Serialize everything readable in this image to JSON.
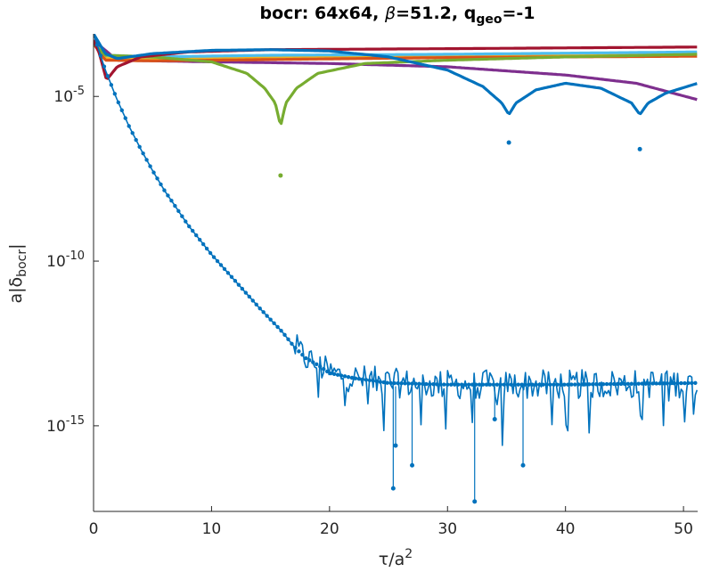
{
  "chart_data": {
    "type": "line",
    "title": {
      "text": "bocr: 64x64, ",
      "beta": "β",
      "beta_eq": "=51.2, q",
      "geo_sub": "geo",
      "tail": "=-1"
    },
    "xlabel": {
      "main": "τ/a",
      "sup": "2"
    },
    "ylabel": {
      "main": "a|δ",
      "sub": "bocr",
      "close": "|"
    },
    "xlim": [
      0,
      51.2
    ],
    "ylim_log10": [
      -17.6,
      -3.1
    ],
    "y_scale": "log",
    "grid": false,
    "legend": "none",
    "x_ticks": [
      {
        "value": 0,
        "label": "0"
      },
      {
        "value": 10,
        "label": "10"
      },
      {
        "value": 20,
        "label": "20"
      },
      {
        "value": 30,
        "label": "30"
      },
      {
        "value": 40,
        "label": "40"
      },
      {
        "value": 50,
        "label": "50"
      }
    ],
    "y_ticks": [
      {
        "value": -5,
        "label": "10",
        "exp": "-5"
      },
      {
        "value": -10,
        "label": "10",
        "exp": "-10"
      },
      {
        "value": -15,
        "label": "10",
        "exp": "-15"
      }
    ],
    "series": [
      {
        "color": "#7e2f8e",
        "points": [
          [
            0,
            -3.3
          ],
          [
            2,
            -3.9
          ],
          [
            10,
            -3.95
          ],
          [
            20,
            -4.0
          ],
          [
            30,
            -4.1
          ],
          [
            40,
            -4.35
          ],
          [
            46,
            -4.6
          ],
          [
            51.2,
            -5.1
          ]
        ]
      },
      {
        "color": "#edb120",
        "points": [
          [
            0,
            -3.4
          ],
          [
            1,
            -3.85
          ],
          [
            5,
            -3.85
          ],
          [
            15,
            -3.8
          ],
          [
            30,
            -3.78
          ],
          [
            45,
            -3.75
          ],
          [
            51.2,
            -3.72
          ]
        ]
      },
      {
        "color": "#d95319",
        "points": [
          [
            0,
            -3.4
          ],
          [
            1,
            -3.9
          ],
          [
            5,
            -3.92
          ],
          [
            15,
            -3.88
          ],
          [
            30,
            -3.82
          ],
          [
            51.2,
            -3.78
          ]
        ]
      },
      {
        "color": "#4dbeee",
        "points": [
          [
            0,
            -3.4
          ],
          [
            1,
            -3.75
          ],
          [
            5,
            -3.8
          ],
          [
            15,
            -3.75
          ],
          [
            30,
            -3.72
          ],
          [
            51.2,
            -3.65
          ]
        ]
      },
      {
        "color": "#77ac30",
        "points": [
          [
            0,
            -3.4
          ],
          [
            1,
            -3.75
          ],
          [
            5,
            -3.8
          ],
          [
            10,
            -3.95
          ],
          [
            13,
            -4.3
          ],
          [
            14.5,
            -4.75
          ],
          [
            15.4,
            -5.2
          ],
          [
            15.85,
            -5.9
          ],
          [
            16.3,
            -5.2
          ],
          [
            17.2,
            -4.75
          ],
          [
            19,
            -4.3
          ],
          [
            23,
            -4.0
          ],
          [
            30,
            -3.9
          ],
          [
            40,
            -3.8
          ],
          [
            51.2,
            -3.72
          ]
        ]
      },
      {
        "color": "#a2142f",
        "points": [
          [
            0,
            -3.3
          ],
          [
            0.5,
            -3.7
          ],
          [
            1.1,
            -4.5
          ],
          [
            2,
            -4.1
          ],
          [
            4,
            -3.8
          ],
          [
            8,
            -3.65
          ],
          [
            15,
            -3.58
          ],
          [
            30,
            -3.55
          ],
          [
            51.2,
            -3.5
          ]
        ]
      },
      {
        "color": "#0072bd",
        "points": [
          [
            0,
            -3.1
          ],
          [
            1,
            -3.7
          ],
          [
            2,
            -3.85
          ],
          [
            5,
            -3.7
          ],
          [
            10,
            -3.6
          ],
          [
            15,
            -3.58
          ],
          [
            20,
            -3.62
          ],
          [
            25,
            -3.8
          ],
          [
            30,
            -4.2
          ],
          [
            33,
            -4.7
          ],
          [
            34.6,
            -5.2
          ],
          [
            35.2,
            -5.55
          ],
          [
            35.8,
            -5.2
          ],
          [
            37.5,
            -4.8
          ],
          [
            40,
            -4.6
          ],
          [
            43,
            -4.75
          ],
          [
            45.6,
            -5.2
          ],
          [
            46.3,
            -5.55
          ],
          [
            47,
            -5.2
          ],
          [
            48.5,
            -4.9
          ],
          [
            51.2,
            -4.6
          ]
        ]
      },
      {
        "color": "#0072bd",
        "points": [
          [
            0,
            -3.1
          ],
          [
            1,
            -4.2
          ],
          [
            2,
            -5.1
          ],
          [
            3,
            -5.9
          ],
          [
            4,
            -6.6
          ],
          [
            5,
            -7.25
          ],
          [
            6,
            -7.85
          ],
          [
            8,
            -8.9
          ],
          [
            10,
            -9.8
          ],
          [
            12,
            -10.6
          ],
          [
            14,
            -11.4
          ],
          [
            16,
            -12.15
          ],
          [
            17,
            -12.6
          ],
          [
            18,
            -12.95
          ],
          [
            19,
            -13.15
          ],
          [
            20,
            -13.4
          ],
          [
            22,
            -13.55
          ],
          [
            25,
            -13.7
          ],
          [
            30,
            -13.75
          ],
          [
            40,
            -13.75
          ],
          [
            51.2,
            -13.7
          ]
        ]
      }
    ],
    "dip_markers": [
      {
        "color": "#0072bd",
        "x": 35.2,
        "y": -6.4
      },
      {
        "color": "#0072bd",
        "x": 46.3,
        "y": -6.6
      },
      {
        "color": "#77ac30",
        "x": 15.85,
        "y": -7.4
      }
    ]
  }
}
